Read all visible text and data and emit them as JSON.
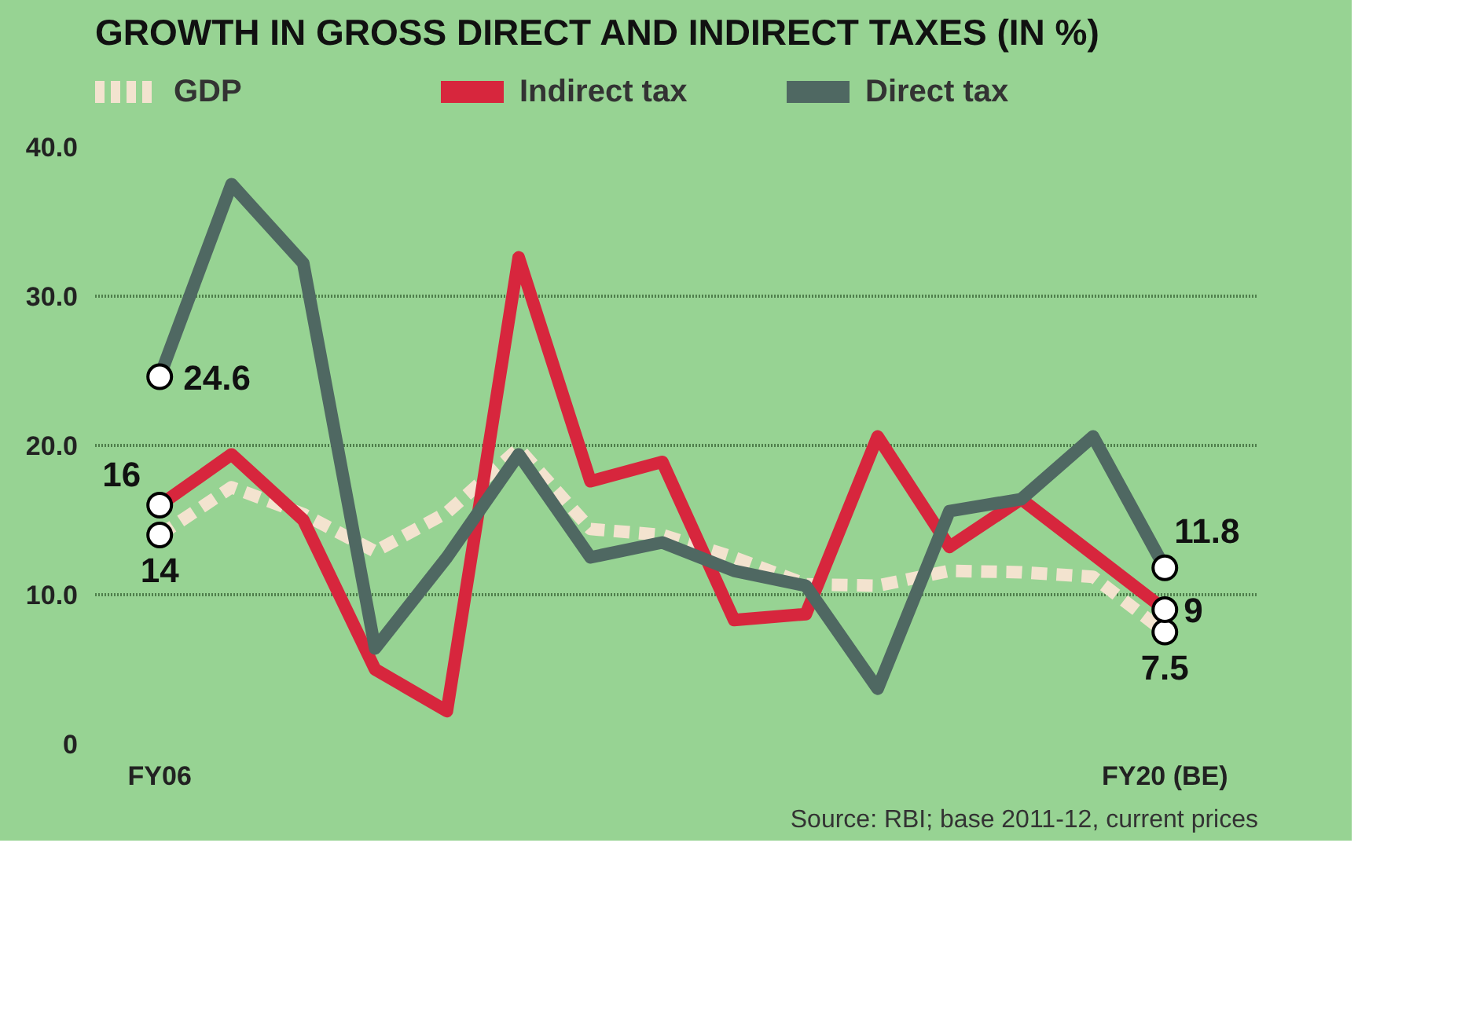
{
  "chart_data": {
    "type": "line",
    "title": "GROWTH IN GROSS DIRECT AND INDIRECT TAXES (IN %)",
    "categories": [
      "FY06",
      null,
      null,
      null,
      null,
      null,
      null,
      null,
      null,
      null,
      null,
      null,
      null,
      null,
      "FY20 (BE)"
    ],
    "series": [
      {
        "name": "GDP",
        "color": "#f3e3cf",
        "line_style": "dashed",
        "values": [
          14,
          17.2,
          15.4,
          12.9,
          15.5,
          19.8,
          14.4,
          14,
          12.5,
          10.7,
          10.6,
          11.6,
          11.5,
          11.2,
          7.5
        ],
        "value_labels": [
          "14",
          null,
          null,
          null,
          null,
          null,
          null,
          null,
          null,
          null,
          null,
          null,
          null,
          null,
          "7.5"
        ]
      },
      {
        "name": "Indirect tax",
        "color": "#d7263d",
        "values": [
          16,
          19.4,
          15,
          5,
          2.2,
          32.6,
          17.6,
          18.9,
          8.3,
          8.7,
          20.6,
          13.2,
          16.4,
          12.7,
          9
        ],
        "value_labels": [
          "16",
          null,
          null,
          null,
          null,
          null,
          null,
          null,
          null,
          null,
          null,
          null,
          null,
          null,
          "9"
        ]
      },
      {
        "name": "Direct tax",
        "color": "#4f6862",
        "values": [
          24.6,
          37.5,
          32.2,
          6.4,
          12.5,
          19.4,
          12.5,
          13.5,
          11.6,
          10.6,
          3.7,
          15.6,
          16.4,
          20.6,
          11.8
        ],
        "value_labels": [
          "24.6",
          null,
          null,
          null,
          null,
          null,
          null,
          null,
          null,
          null,
          null,
          null,
          null,
          null,
          "11.8"
        ]
      }
    ],
    "ylim": [
      0,
      40
    ],
    "yticks": [
      {
        "value": 0,
        "label": "0"
      },
      {
        "value": 10,
        "label": "10.0"
      },
      {
        "value": 20,
        "label": "20.0"
      },
      {
        "value": 30,
        "label": "30.0"
      },
      {
        "value": 40,
        "label": "40.0"
      }
    ],
    "grid": "y",
    "legend": "top left",
    "line_style": "solid",
    "annotations": [
      "Source: RBI; base 2011-12, current prices"
    ]
  }
}
